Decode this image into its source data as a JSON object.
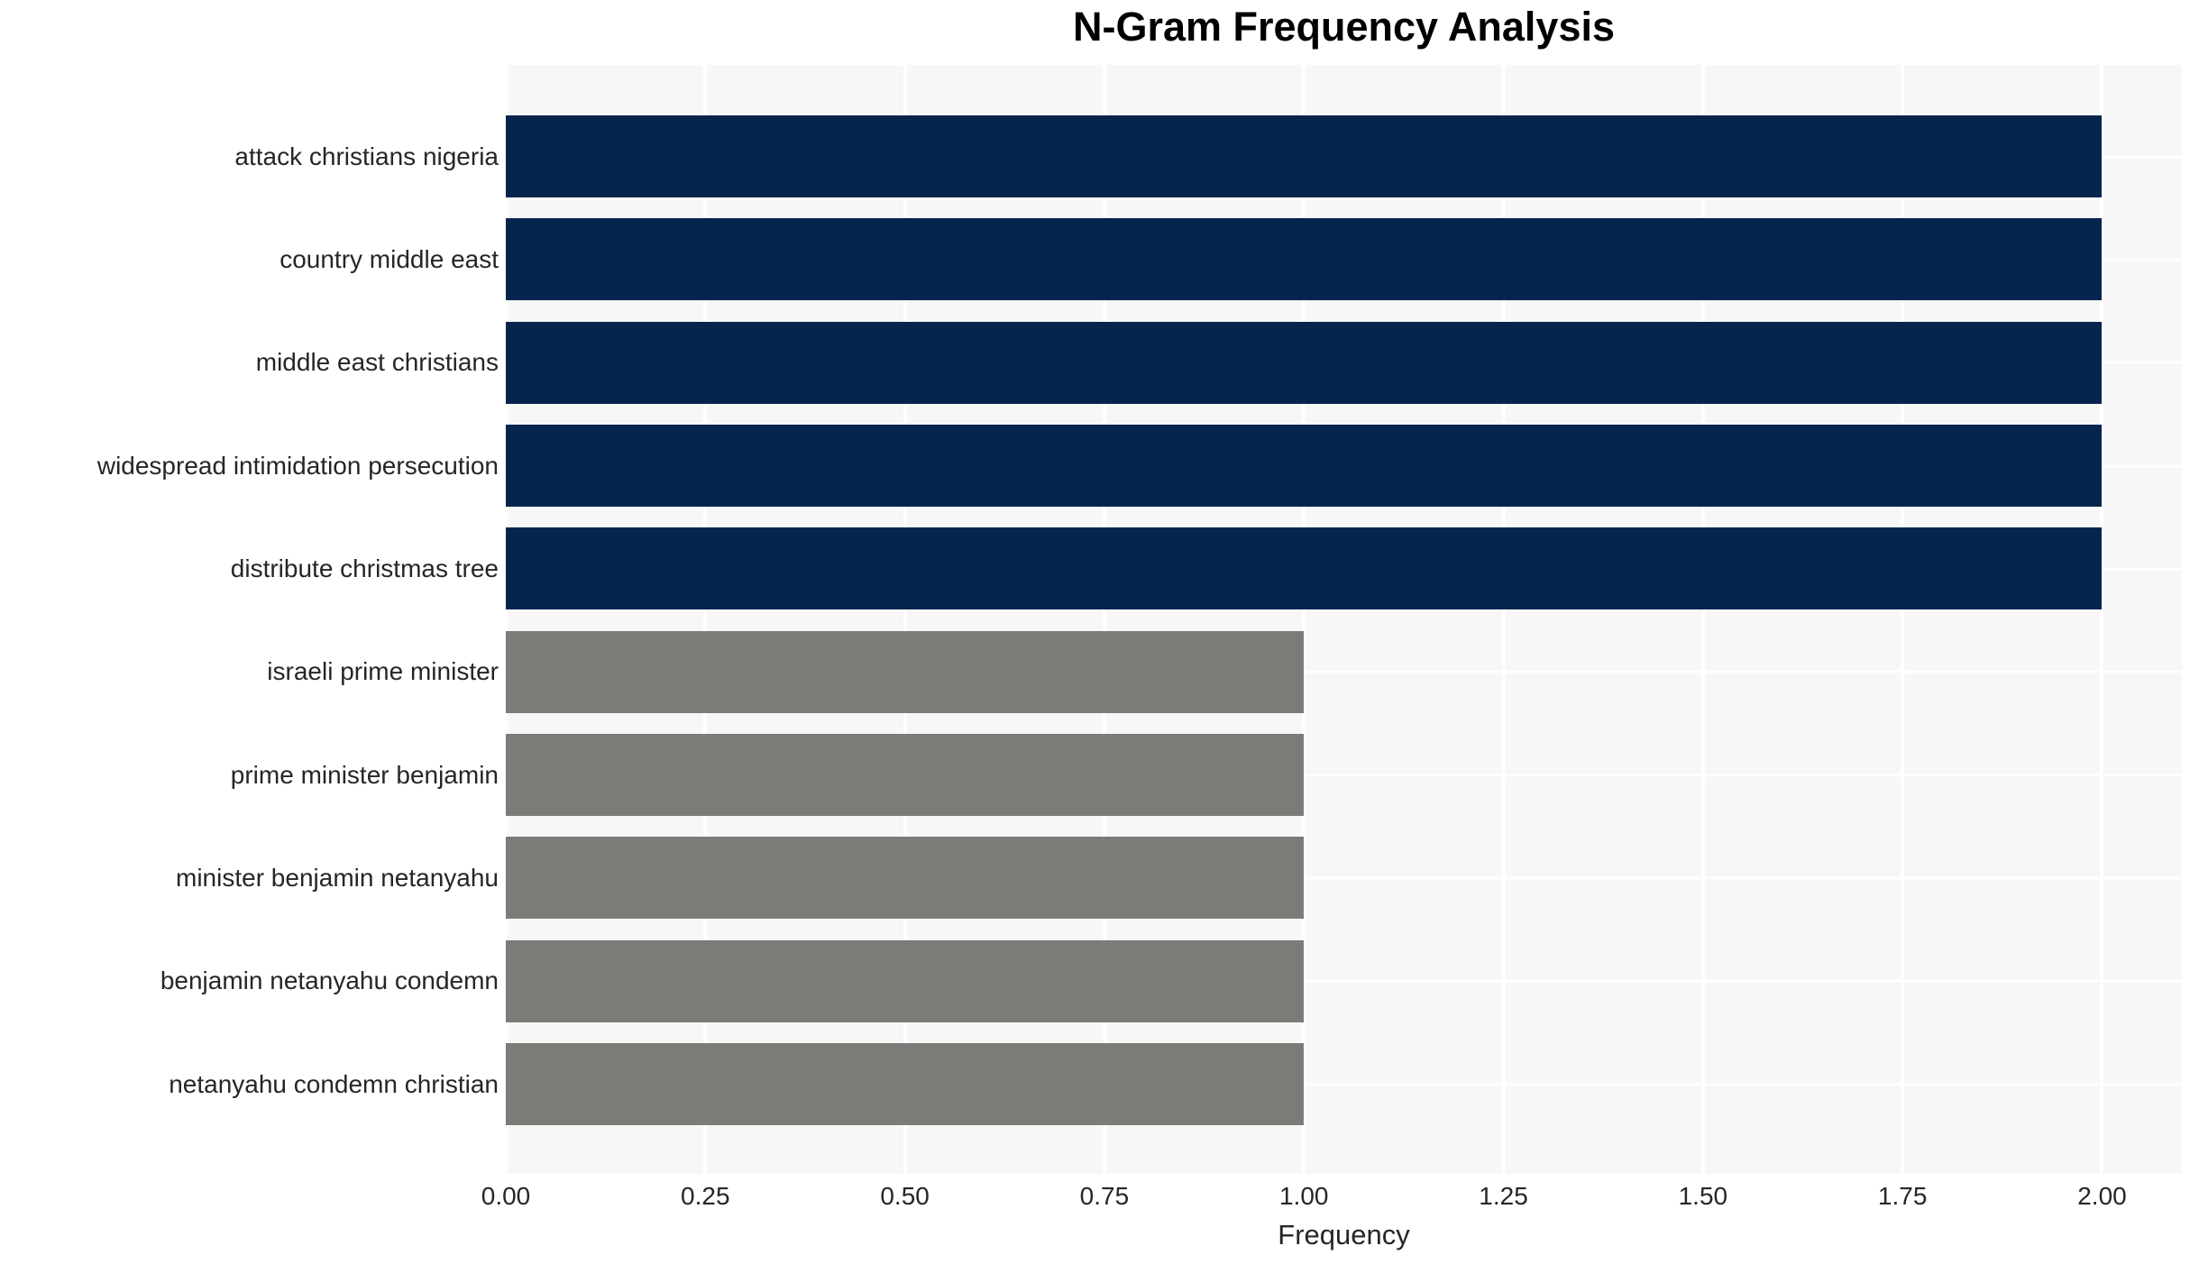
{
  "title": "N-Gram Frequency Analysis",
  "colors": {
    "high_freq_bar": "#05254e",
    "low_freq_bar": "#7b7b78",
    "plot_background": "#f7f7f8",
    "gridline": "#ffffff",
    "tick_text": "#262626",
    "title_text": "#000000"
  },
  "chart_data": {
    "type": "bar",
    "orientation": "horizontal",
    "title": "N-Gram Frequency Analysis",
    "xlabel": "Frequency",
    "ylabel": "",
    "categories": [
      "attack christians nigeria",
      "country middle east",
      "middle east christians",
      "widespread intimidation persecution",
      "distribute christmas tree",
      "israeli prime minister",
      "prime minister benjamin",
      "minister benjamin netanyahu",
      "benjamin netanyahu condemn",
      "netanyahu condemn christian"
    ],
    "values": [
      2,
      2,
      2,
      2,
      2,
      1,
      1,
      1,
      1,
      1
    ],
    "bar_colors": [
      "#05254e",
      "#05254e",
      "#05254e",
      "#05254e",
      "#05254e",
      "#7b7b78",
      "#7b7b78",
      "#7b7b78",
      "#7b7b78",
      "#7b7b78"
    ],
    "xlim": [
      0,
      2.1
    ],
    "xticks": [
      {
        "value": 0.0,
        "label": "0.00"
      },
      {
        "value": 0.25,
        "label": "0.25"
      },
      {
        "value": 0.5,
        "label": "0.50"
      },
      {
        "value": 0.75,
        "label": "0.75"
      },
      {
        "value": 1.0,
        "label": "1.00"
      },
      {
        "value": 1.25,
        "label": "1.25"
      },
      {
        "value": 1.5,
        "label": "1.50"
      },
      {
        "value": 1.75,
        "label": "1.75"
      },
      {
        "value": 2.0,
        "label": "2.00"
      }
    ],
    "grid": true,
    "legend": false
  }
}
